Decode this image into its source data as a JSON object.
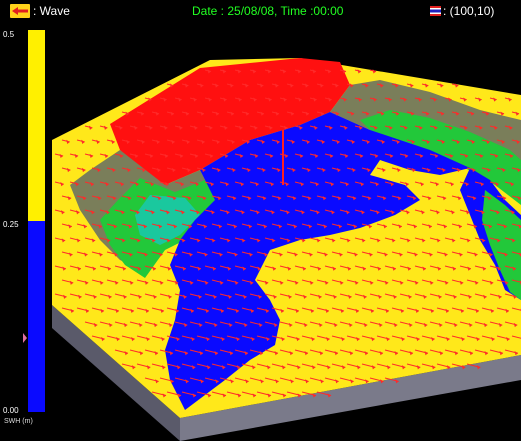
{
  "hud": {
    "wave_label": ": Wave",
    "datetime": "Date : 25/08/08, Time :00:00",
    "position": ": (100,10)",
    "wave_icon": "arrow-left-icon",
    "flag_icon": "thai-flag-icon"
  },
  "colorbar": {
    "max_label": "0.5",
    "mid_label": "0.25",
    "min_label": "0.00",
    "unit_label": "SWH (m)",
    "colors": {
      "high": "#fff000",
      "low": "#0a0aff"
    }
  },
  "scene": {
    "colors": {
      "deep": "#ff1010",
      "shallow": "#ffe81a",
      "calm": "#0a0aff",
      "land_green": "#22c83a",
      "terrain": "#8a8a6a",
      "arrow": "#ff2a2a",
      "base": "#6a6a7a"
    }
  }
}
